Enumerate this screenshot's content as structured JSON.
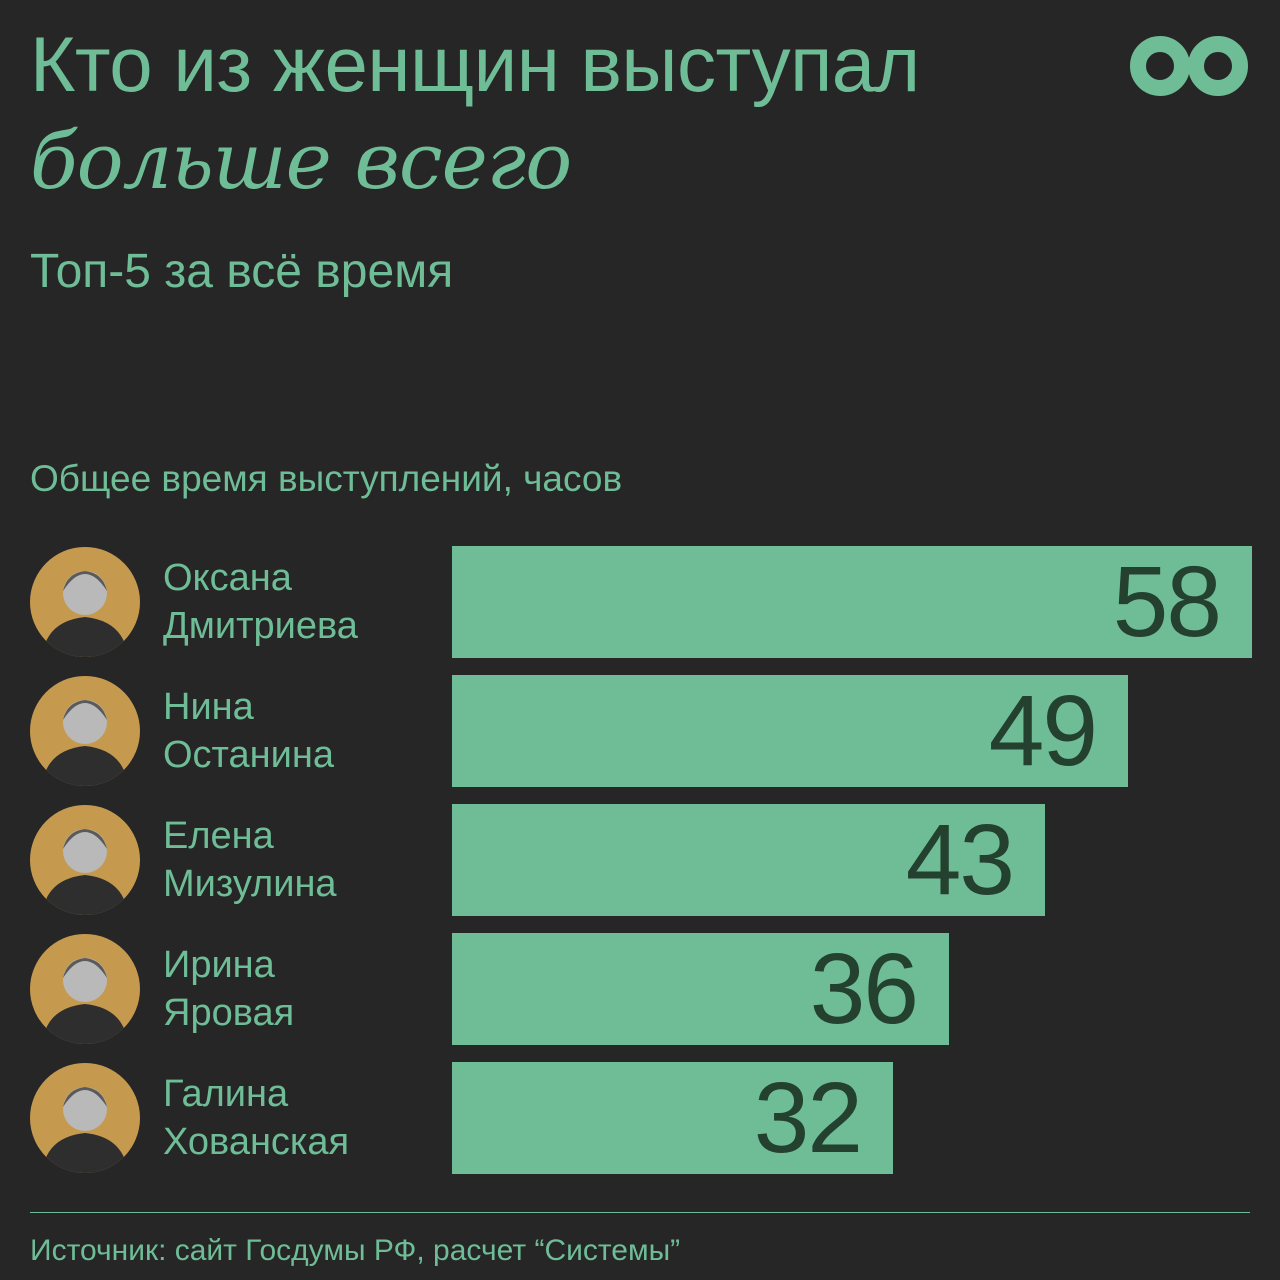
{
  "header": {
    "title_line1": "Кто из женщин выступал",
    "title_line2": "больше всего",
    "subtitle": "Топ-5 за всё время"
  },
  "logo": {
    "icon": "infinity-icon",
    "color": "#6fbd97"
  },
  "colors": {
    "background": "#262626",
    "accent": "#6fbd97",
    "value_text": "#24402f",
    "avatar_bg": "#c59a4f"
  },
  "chart_data": {
    "type": "bar",
    "orientation": "horizontal",
    "ylabel": "Общее время выступлений, часов",
    "categories": [
      [
        "Оксана",
        "Дмитриева"
      ],
      [
        "Нина",
        "Останина"
      ],
      [
        "Елена",
        "Мизулина"
      ],
      [
        "Ирина",
        "Яровая"
      ],
      [
        "Галина",
        "Хованская"
      ]
    ],
    "values": [
      58,
      49,
      43,
      36,
      32
    ],
    "xlim": [
      0,
      58
    ],
    "grid": false,
    "legend": "none"
  },
  "footer": {
    "source": "Источник: сайт Госдумы РФ, расчет “Системы”"
  }
}
